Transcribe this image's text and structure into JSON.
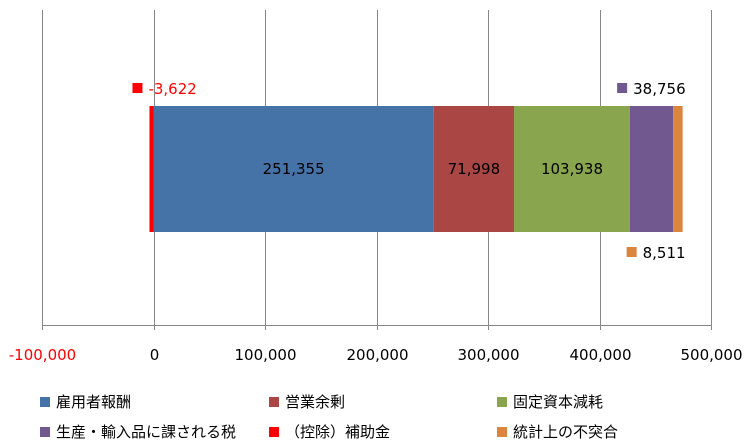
{
  "chart_data": {
    "type": "bar",
    "orientation": "horizontal",
    "stacked": true,
    "xlim": [
      -100000,
      500000
    ],
    "x_ticks": [
      -100000,
      0,
      100000,
      200000,
      300000,
      400000,
      500000
    ],
    "x_tick_labels": [
      "-100,000",
      "0",
      "100,000",
      "200,000",
      "300,000",
      "400,000",
      "500,000"
    ],
    "grid": true,
    "legend_position": "bottom",
    "series": [
      {
        "name": "雇用者報酬",
        "value": 251355,
        "label": "251,355",
        "color": "#4572a7",
        "label_position": "inside"
      },
      {
        "name": "営業余剰",
        "value": 71998,
        "label": "71,998",
        "color": "#aa4643",
        "label_position": "inside"
      },
      {
        "name": "固定資本減耗",
        "value": 103938,
        "label": "103,938",
        "color": "#89a54e",
        "label_position": "inside"
      },
      {
        "name": "生産・輸入品に課される税",
        "value": 38756,
        "label": "38,756",
        "color": "#71588f",
        "label_position": "above"
      },
      {
        "name": "（控除）補助金",
        "value": -3622,
        "label": "-3,622",
        "color": "#ff0000",
        "label_position": "above"
      },
      {
        "name": "統計上の不突合",
        "value": 8511,
        "label": "8,511",
        "color": "#db843d",
        "label_position": "below"
      }
    ]
  }
}
